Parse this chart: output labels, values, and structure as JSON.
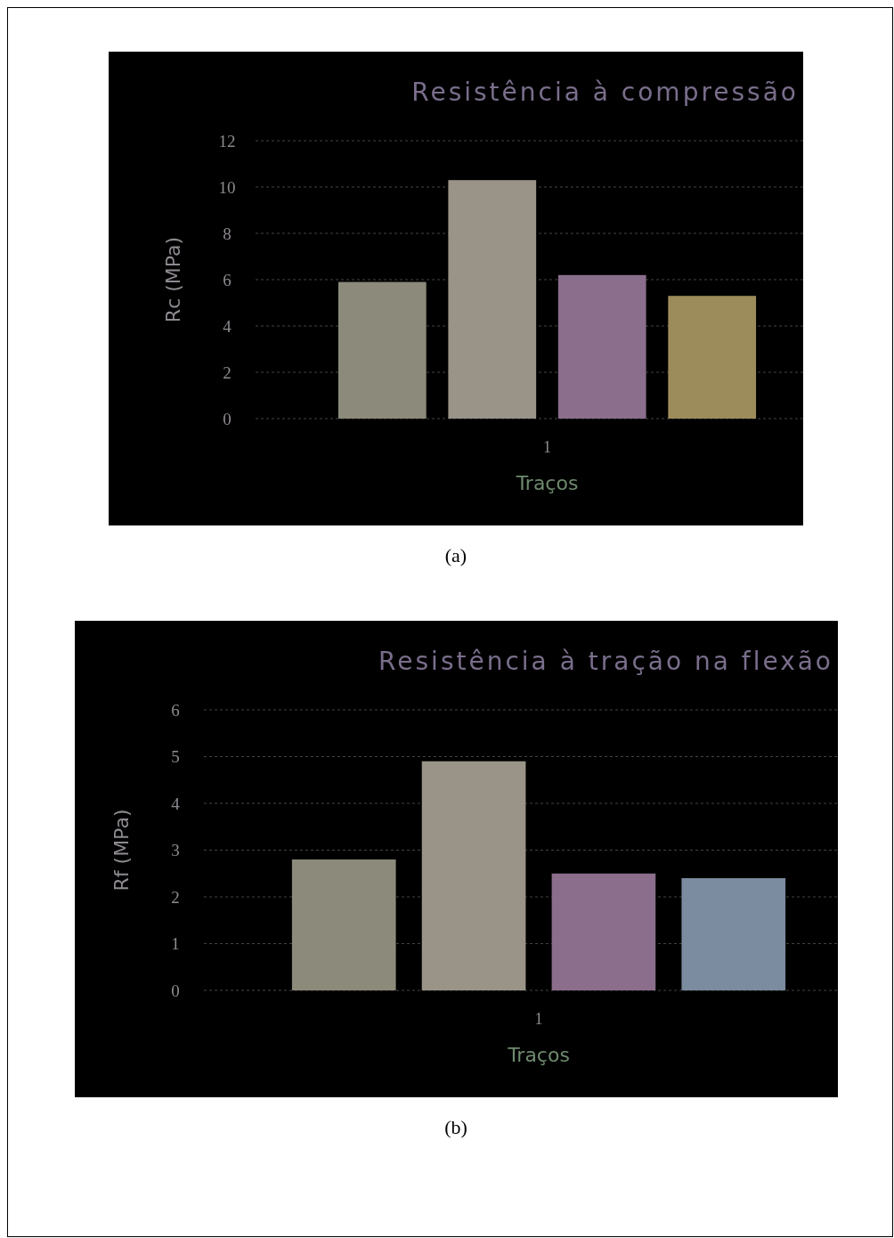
{
  "chart_data": [
    {
      "type": "bar",
      "title": "Resistência à compressão",
      "xlabel": "Traços",
      "ylabel": "Rc (MPa)",
      "categories": [
        "1"
      ],
      "series": [
        {
          "color": "#8c8a7a",
          "values": [
            5.9
          ]
        },
        {
          "color": "#9a9488",
          "values": [
            10.3
          ]
        },
        {
          "color": "#8a6e8c",
          "values": [
            6.2
          ]
        },
        {
          "color": "#9c8c5c",
          "values": [
            5.3
          ]
        }
      ],
      "ylim": [
        0,
        12
      ],
      "yticks": [
        0,
        2,
        4,
        6,
        8,
        10,
        12
      ],
      "grid": "y",
      "annotations": [
        "(a)"
      ]
    },
    {
      "type": "bar",
      "title": "Resistência à tração na flexão",
      "xlabel": "Traços",
      "ylabel": "Rf (MPa)",
      "categories": [
        "1"
      ],
      "series": [
        {
          "color": "#8c8a7a",
          "values": [
            2.8
          ]
        },
        {
          "color": "#9a9488",
          "values": [
            4.9
          ]
        },
        {
          "color": "#8a6e8c",
          "values": [
            2.5
          ]
        },
        {
          "color": "#7c8ca0",
          "values": [
            2.4
          ]
        }
      ],
      "ylim": [
        0,
        6
      ],
      "yticks": [
        0,
        1,
        2,
        3,
        4,
        5,
        6
      ],
      "grid": "y",
      "annotations": [
        "(b)"
      ]
    }
  ]
}
